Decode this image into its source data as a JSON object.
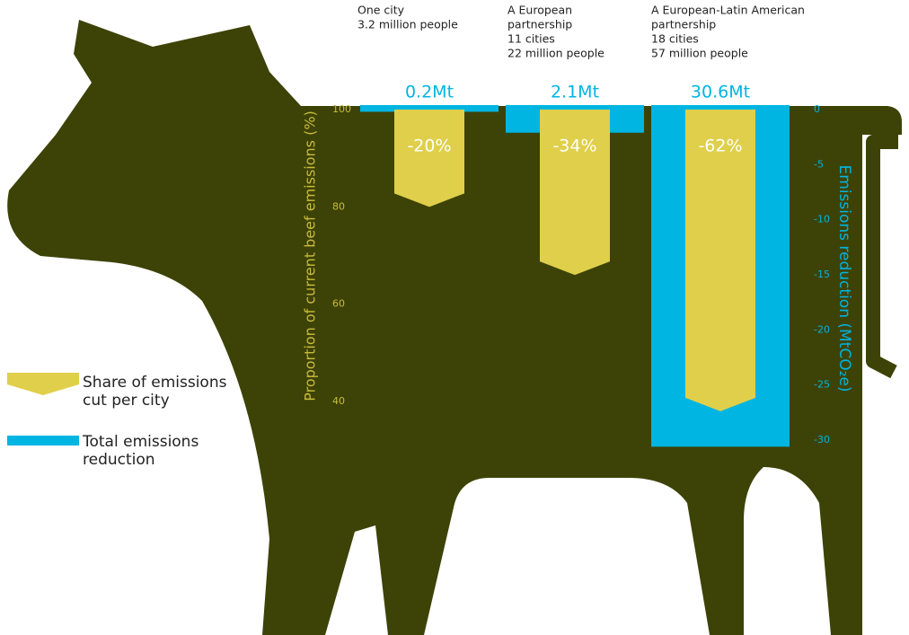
{
  "chart_data": {
    "type": "bar",
    "categories": [
      [
        "One city",
        "3.2 million people"
      ],
      [
        "A European",
        "partnership",
        "11 cities",
        "22 million people"
      ],
      [
        "A European-Latin American",
        "partnership",
        "18 cities",
        "57 million people"
      ]
    ],
    "ylabel": "Proportion of current beef emissions (%)",
    "y2label": "Emissions reduction (MtCO₂e)",
    "ylim": [
      40,
      100
    ],
    "yticks": [
      100,
      80,
      60,
      40
    ],
    "y2lim": [
      -30,
      0
    ],
    "y2ticks": [
      0,
      -5,
      -10,
      -15,
      -20,
      -25,
      -30
    ],
    "series": [
      {
        "name": "Share of emissions cut per city",
        "color": "#e0cf4a",
        "values": [
          -20,
          -34,
          -62
        ],
        "value_labels": [
          "-20%",
          "-34%",
          "-62%"
        ]
      },
      {
        "name": "Total emissions reduction",
        "color": "#00b5e2",
        "axis": "y2",
        "values": [
          -0.2,
          -2.1,
          -30.6
        ],
        "value_labels": [
          "0.2Mt",
          "2.1Mt",
          "30.6Mt"
        ]
      }
    ]
  }
}
